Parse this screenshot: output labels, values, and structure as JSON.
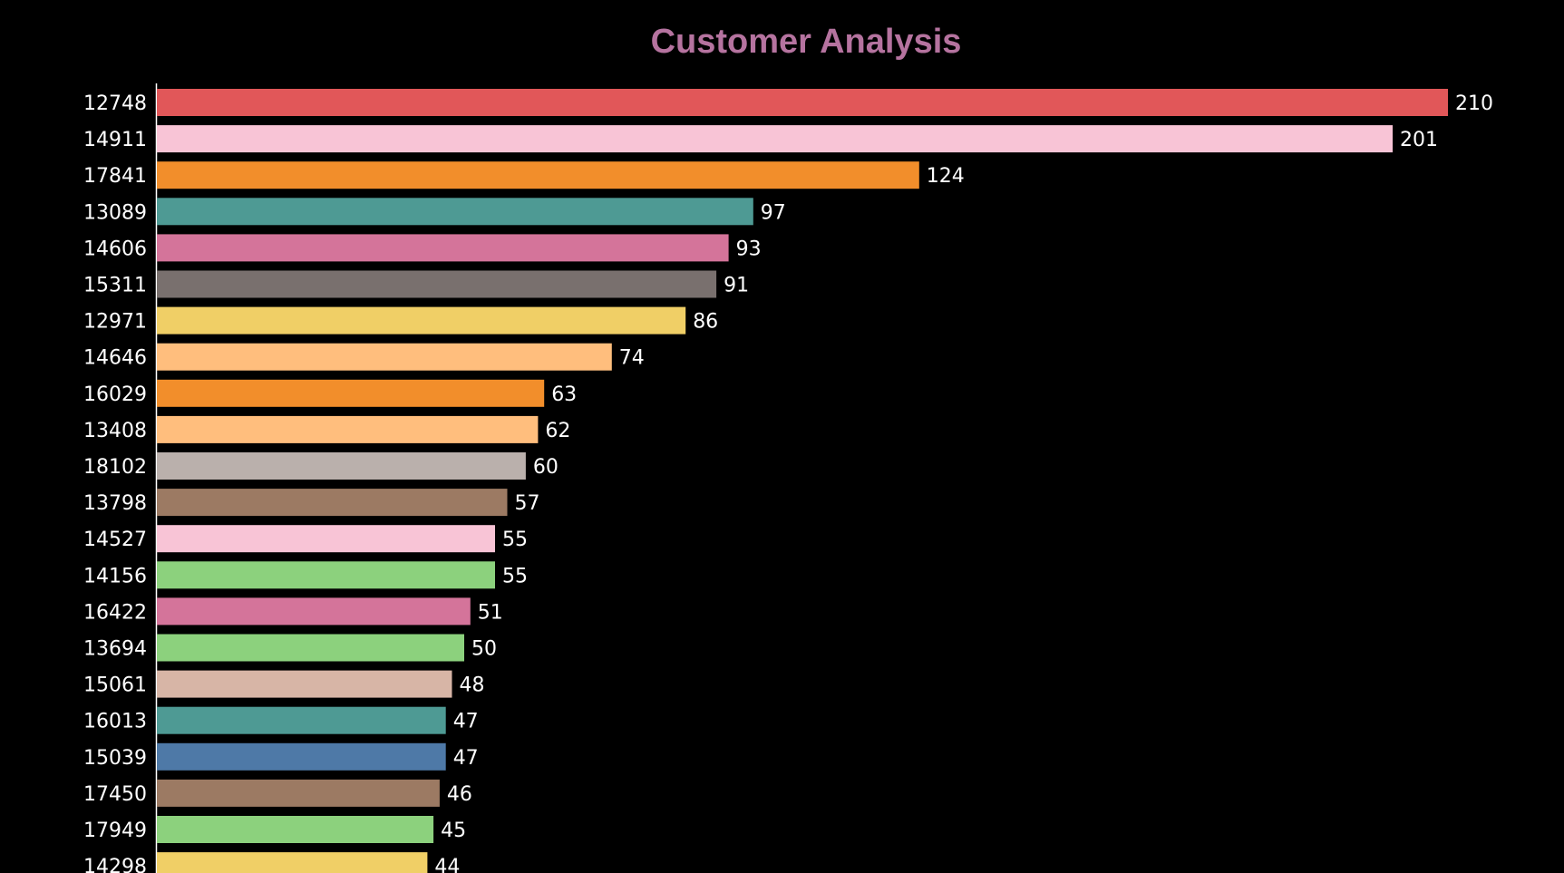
{
  "chart_data": {
    "type": "bar",
    "orientation": "horizontal",
    "title": "Customer Analysis",
    "xlabel": "",
    "ylabel": "",
    "categories": [
      "12748",
      "14911",
      "17841",
      "13089",
      "14606",
      "15311",
      "12971",
      "14646",
      "16029",
      "13408",
      "18102",
      "13798",
      "14527",
      "14156",
      "16422",
      "13694",
      "15061",
      "16013",
      "15039",
      "17450",
      "17949",
      "14298"
    ],
    "values": [
      210,
      201,
      124,
      97,
      93,
      91,
      86,
      74,
      63,
      62,
      60,
      57,
      55,
      55,
      51,
      50,
      48,
      47,
      47,
      46,
      45,
      44
    ],
    "colors": [
      "#e15759",
      "#f8c4d6",
      "#f28e2b",
      "#4e9a94",
      "#d4749a",
      "#79706e",
      "#f0cf66",
      "#ffbe7d",
      "#f28e2b",
      "#ffbe7d",
      "#bab0ac",
      "#9c7a63",
      "#f8c4d6",
      "#8cd17d",
      "#d4749a",
      "#8cd17d",
      "#d7b5a6",
      "#4e9a94",
      "#4e79a7",
      "#9c7a63",
      "#8cd17d",
      "#f0cf66"
    ],
    "xlim": [
      0,
      210
    ],
    "grid": false,
    "data_labels": true,
    "background_color": "#000000",
    "title_color": "#b5739f",
    "text_color": "#ffffff"
  }
}
